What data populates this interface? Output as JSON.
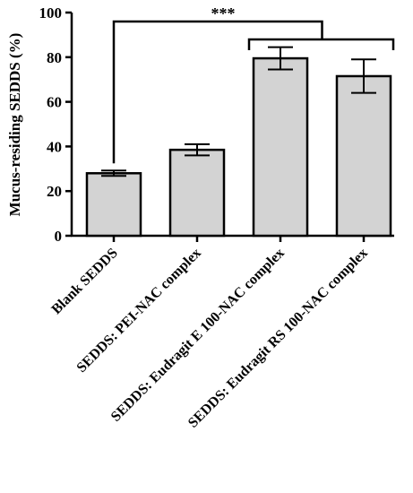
{
  "chart_data": {
    "type": "bar",
    "categories": [
      "Blank SEDDS",
      "SEDDS: PEI-NAC complex",
      "SEDDS: Eudragit E 100-NAC complex",
      "SEDDS: Eudragit RS 100-NAC complex"
    ],
    "values": [
      28,
      38.5,
      79.5,
      71.5
    ],
    "errors": [
      1.2,
      2.5,
      5.0,
      7.5
    ],
    "ylabel": "Mucus-residing SEDDS (%)",
    "xlabel": "",
    "ylim": [
      0,
      100
    ],
    "yticks": [
      0,
      20,
      40,
      60,
      80,
      100
    ],
    "bar_color": "#d3d3d3",
    "edge_color": "#000000",
    "significance": {
      "label": "***",
      "from": [
        0
      ],
      "to": [
        2,
        3
      ]
    }
  }
}
